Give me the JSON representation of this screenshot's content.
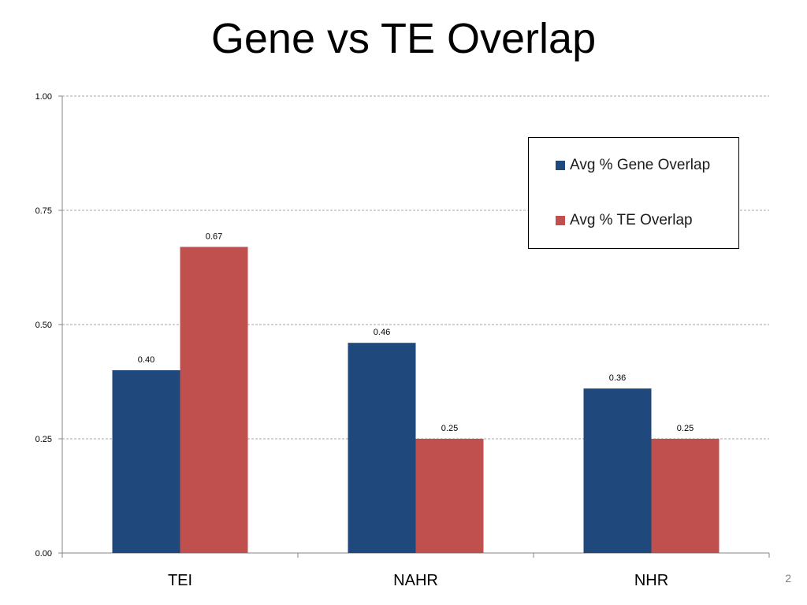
{
  "title": "Gene vs TE Overlap",
  "page_number": "2",
  "colors": {
    "gene": "#1f497d",
    "te": "#c0504d"
  },
  "chart_data": {
    "type": "bar",
    "title": "Gene vs TE Overlap",
    "xlabel": "",
    "ylabel": "",
    "categories": [
      "TEI",
      "NAHR",
      "NHR"
    ],
    "series": [
      {
        "name": "Avg % Gene Overlap",
        "values": [
          0.4,
          0.46,
          0.36
        ],
        "labels": [
          "0.40",
          "0.46",
          "0.36"
        ]
      },
      {
        "name": "Avg % TE Overlap",
        "values": [
          0.67,
          0.25,
          0.25
        ],
        "labels": [
          "0.67",
          "0.25",
          "0.25"
        ]
      }
    ],
    "ylim": [
      0,
      1
    ],
    "yticks": [
      "0.00",
      "0.25",
      "0.50",
      "0.75",
      "1.00"
    ],
    "grid": true,
    "legend_position": "top-right"
  }
}
